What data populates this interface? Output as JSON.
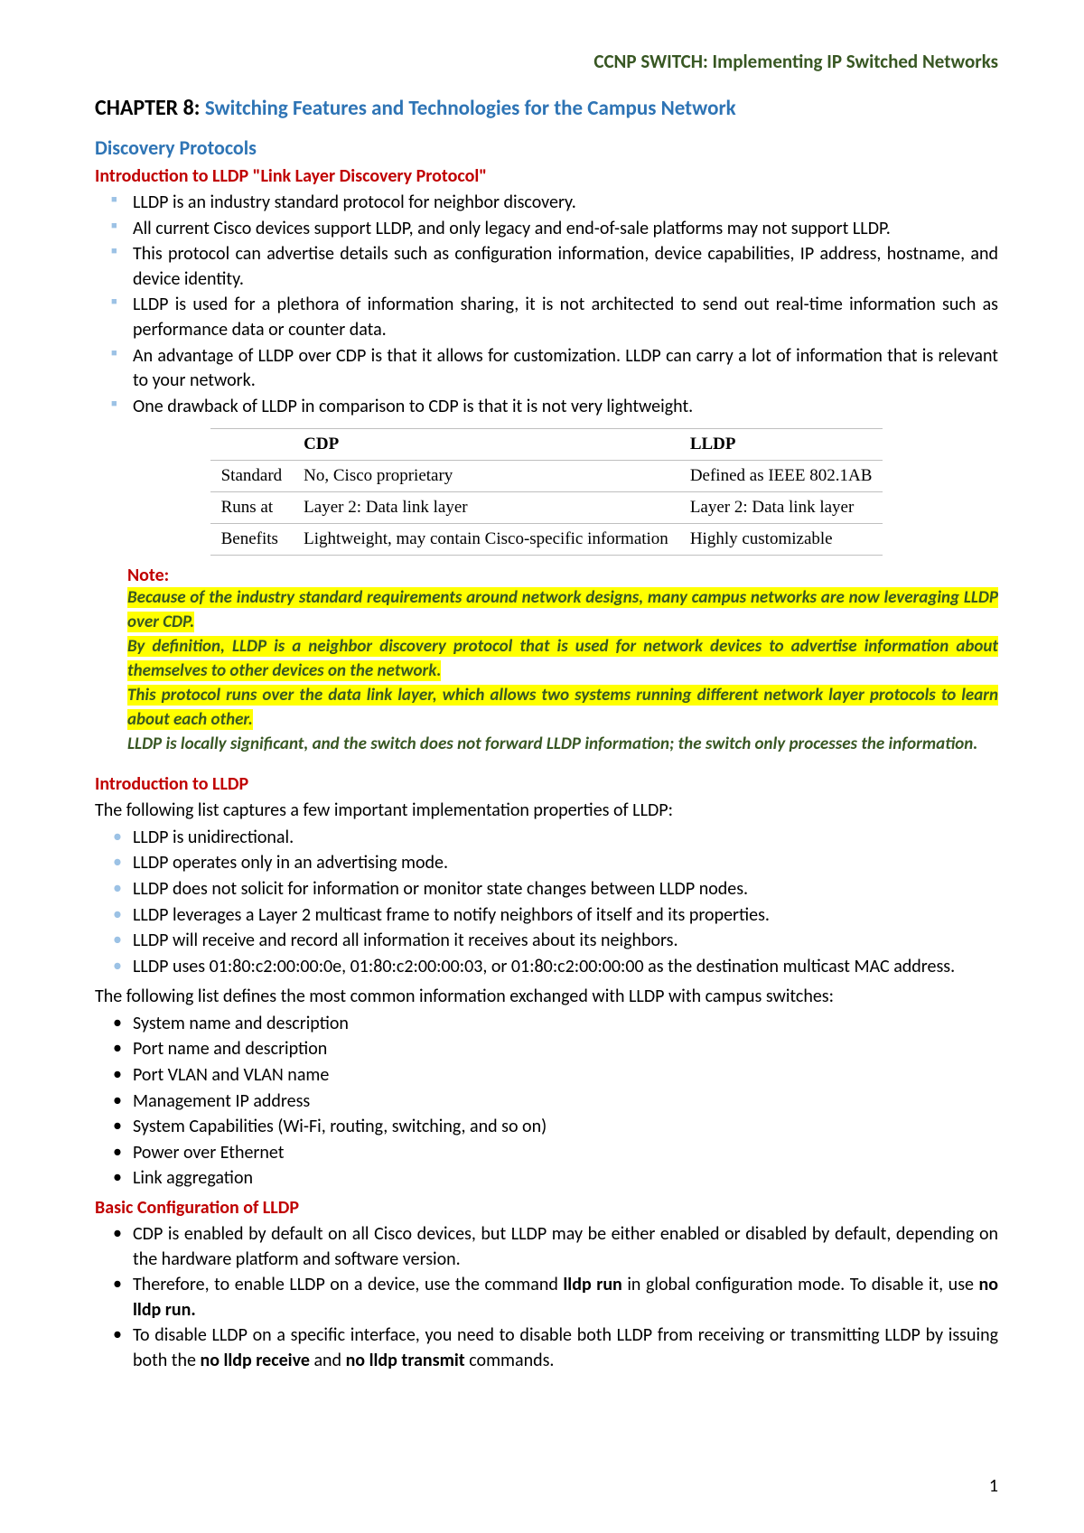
{
  "colors": {
    "header_green": "#385723",
    "heading_blue": "#2e74b5",
    "heading_red": "#c00000",
    "bullet_blue": "#9cc2e5",
    "highlight": "#ffff00",
    "table_border": "#bfbfbf",
    "text": "#000000",
    "background": "#ffffff"
  },
  "doc_header": "CCNP SWITCH: Implementing IP Switched Networks",
  "chapter": {
    "label": "CHAPTER 8: ",
    "title": "Switching Features and Technologies for the Campus Network"
  },
  "section1_title": "Discovery Protocols",
  "section1_sub": "Introduction to LLDP \"Link Layer Discovery Protocol\"",
  "intro_bullets": [
    "LLDP is an industry standard protocol for neighbor discovery.",
    "All current Cisco devices support LLDP, and only legacy and end-of-sale platforms may not support LLDP.",
    "This protocol can advertise details such as configuration information, device capabilities, IP address, hostname, and device identity.",
    "LLDP is used for a plethora of information sharing, it is not architected to send out real-time information such as performance data or counter data.",
    "An advantage of LLDP over CDP is that it allows for customization. LLDP can carry a lot of information that is relevant to your network.",
    "One drawback of LLDP in comparison to CDP is that it is not very lightweight."
  ],
  "cmp_table": {
    "headers": [
      "",
      "CDP",
      "LLDP"
    ],
    "rows": [
      [
        "Standard",
        "No, Cisco proprietary",
        "Defined as IEEE 802.1AB"
      ],
      [
        "Runs at",
        "Layer 2: Data link layer",
        "Layer 2: Data link layer"
      ],
      [
        "Benefits",
        "Lightweight, may contain Cisco-specific information",
        "Highly customizable"
      ]
    ]
  },
  "note_label": "Note:",
  "note_lines": [
    {
      "text": "Because of the industry standard requirements around network designs, many campus networks are now leveraging LLDP over CDP.",
      "highlight": true
    },
    {
      "text": "By definition, LLDP is a neighbor discovery protocol that is used for network devices to advertise information about themselves to other devices on the network.",
      "highlight": true
    },
    {
      "text": "This protocol runs over the data link layer, which allows two systems running different network layer protocols to learn about each other.",
      "highlight": true
    },
    {
      "text": "LLDP is locally significant, and the switch does not forward LLDP information; the switch only processes the information.",
      "highlight": false
    }
  ],
  "section2_title": "Introduction to LLDP",
  "section2_intro": "The following list captures a few important implementation properties of LLDP:",
  "props_bullets": [
    "LLDP is unidirectional.",
    "LLDP operates only in an advertising mode.",
    "LLDP does not solicit for information or monitor state changes between LLDP nodes.",
    "LLDP leverages a Layer 2 multicast frame to notify neighbors of itself and its properties.",
    "LLDP will receive and record all information it receives about its neighbors.",
    "LLDP uses 01:80:c2:00:00:0e, 01:80:c2:00:00:03, or 01:80:c2:00:00:00 as the destination multicast MAC address."
  ],
  "section2_intro2": "The following list defines the most common information exchanged with LLDP with campus switches:",
  "info_bullets": [
    "System name and description",
    "Port name and description",
    "Port VLAN and VLAN name",
    "Management IP address",
    "System Capabilities (Wi-Fi, routing, switching, and so on)",
    "Power over Ethernet",
    "Link aggregation"
  ],
  "section3_title": "Basic Configuration of LLDP",
  "config_bullets": [
    {
      "pre": "CDP is enabled by default on all Cisco devices, but LLDP may be either enabled or disabled by default, depending on the hardware platform and software version."
    },
    {
      "pre": "Therefore, to enable LLDP on a device, use the command ",
      "b1": "lldp run",
      "mid": " in global configuration mode. To disable it, use ",
      "b2": "no lldp run."
    },
    {
      "pre": "To disable LLDP on a specific interface, you need to disable both LLDP from receiving or transmitting LLDP by issuing both the ",
      "b1": "no lldp receive",
      "mid": " and ",
      "b2": "no lldp transmit",
      "post": " commands."
    }
  ],
  "page_number": "1"
}
